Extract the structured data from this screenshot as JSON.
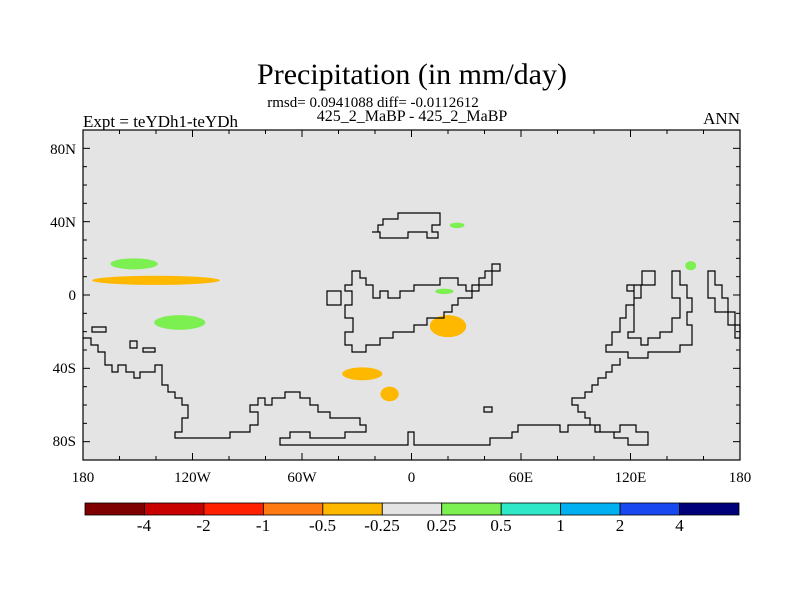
{
  "chart_data": {
    "type": "map",
    "title": "Precipitation (in mm/day)",
    "subtitle_stats": "rmsd= 0.0941088 diff= -0.0112612",
    "subtitle_compare": "425_2_MaBP - 425_2_MaBP",
    "expt_label": "Expt = teYDh1-teYDh",
    "season_label": "ANN",
    "lon_ticks": [
      {
        "value": -180,
        "label": "180"
      },
      {
        "value": -120,
        "label": "120W"
      },
      {
        "value": -60,
        "label": "60W"
      },
      {
        "value": 0,
        "label": "0"
      },
      {
        "value": 60,
        "label": "60E"
      },
      {
        "value": 120,
        "label": "120E"
      },
      {
        "value": 180,
        "label": "180"
      }
    ],
    "lat_ticks": [
      {
        "value": 80,
        "label": "80N"
      },
      {
        "value": 40,
        "label": "40N"
      },
      {
        "value": 0,
        "label": "0"
      },
      {
        "value": -40,
        "label": "40S"
      },
      {
        "value": -80,
        "label": "80S"
      }
    ],
    "xlim": [
      -180,
      180
    ],
    "ylim": [
      -90,
      90
    ],
    "colorbar": {
      "colors": [
        "#7f0000",
        "#c80000",
        "#ff2000",
        "#ff7a10",
        "#ffb800",
        "#e4e4e4",
        "#7bf050",
        "#2fe8c8",
        "#00b0f0",
        "#1848f0",
        "#00007a"
      ],
      "labels": [
        "-4",
        "-2",
        "-1",
        "-0.5",
        "-0.25",
        "0.25",
        "0.5",
        "1",
        "2",
        "4"
      ]
    },
    "anomaly_blobs": [
      {
        "lon": -152,
        "lat": 17,
        "w": 26,
        "h": 6,
        "color": "#7bf050"
      },
      {
        "lon": -140,
        "lat": 8,
        "w": 70,
        "h": 5,
        "color": "#ffb800"
      },
      {
        "lon": -127,
        "lat": -15,
        "w": 28,
        "h": 8,
        "color": "#7bf050"
      },
      {
        "lon": -27,
        "lat": -43,
        "w": 22,
        "h": 7,
        "color": "#ffb800"
      },
      {
        "lon": -12,
        "lat": -54,
        "w": 10,
        "h": 8,
        "color": "#ffb800"
      },
      {
        "lon": 20,
        "lat": -17,
        "w": 20,
        "h": 12,
        "color": "#ffb800"
      },
      {
        "lon": 18,
        "lat": 2,
        "w": 10,
        "h": 3,
        "color": "#7bf050"
      },
      {
        "lon": 25,
        "lat": 38,
        "w": 8,
        "h": 3,
        "color": "#7bf050"
      },
      {
        "lon": 153,
        "lat": 16,
        "w": 6,
        "h": 5,
        "color": "#7bf050"
      }
    ]
  }
}
